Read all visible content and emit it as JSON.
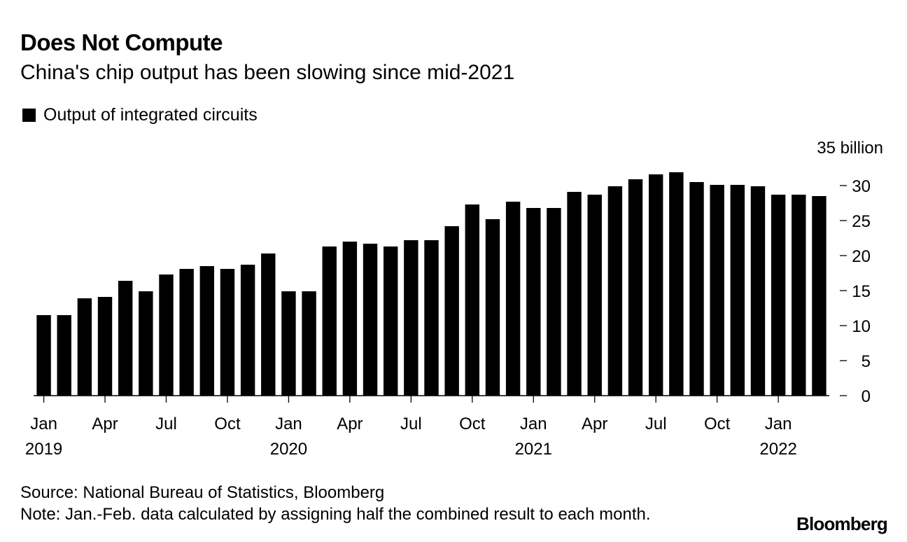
{
  "header": {
    "title": "Does Not Compute",
    "subtitle": "China's chip output has been slowing since mid-2021"
  },
  "legend": {
    "label": "Output of integrated circuits",
    "color": "#000000"
  },
  "footer": {
    "source": "Source: National Bureau of Statistics, Bloomberg",
    "note": "Note: Jan.-Feb. data calculated by assigning half the combined result to each month.",
    "logo": "Bloomberg"
  },
  "chart_data": {
    "type": "bar",
    "title": "Does Not Compute",
    "subtitle": "China's chip output has been slowing since mid-2021",
    "ylabel": "35 billion",
    "ylim": [
      0,
      35
    ],
    "yticks": [
      0,
      5,
      10,
      15,
      20,
      25,
      30
    ],
    "y_axis_position": "right",
    "bar_color": "#000000",
    "categories": [
      "2019-01",
      "2019-02",
      "2019-03",
      "2019-04",
      "2019-05",
      "2019-06",
      "2019-07",
      "2019-08",
      "2019-09",
      "2019-10",
      "2019-11",
      "2019-12",
      "2020-01",
      "2020-02",
      "2020-03",
      "2020-04",
      "2020-05",
      "2020-06",
      "2020-07",
      "2020-08",
      "2020-09",
      "2020-10",
      "2020-11",
      "2020-12",
      "2021-01",
      "2021-02",
      "2021-03",
      "2021-04",
      "2021-05",
      "2021-06",
      "2021-07",
      "2021-08",
      "2021-09",
      "2021-10",
      "2021-11",
      "2021-12",
      "2022-01",
      "2022-02",
      "2022-03"
    ],
    "values": [
      11.5,
      11.5,
      13.9,
      14.1,
      16.4,
      14.9,
      17.3,
      18.1,
      18.5,
      18.1,
      18.7,
      20.3,
      14.9,
      14.9,
      21.3,
      22.0,
      21.7,
      21.3,
      22.2,
      22.2,
      24.2,
      27.3,
      25.2,
      27.7,
      26.8,
      26.8,
      29.1,
      28.7,
      29.9,
      30.9,
      31.6,
      31.9,
      30.5,
      30.1,
      30.1,
      29.9,
      28.7,
      28.7,
      28.5
    ],
    "x_ticks": [
      {
        "index": 0,
        "label": "Jan",
        "year": "2019"
      },
      {
        "index": 3,
        "label": "Apr",
        "year": ""
      },
      {
        "index": 6,
        "label": "Jul",
        "year": ""
      },
      {
        "index": 9,
        "label": "Oct",
        "year": ""
      },
      {
        "index": 12,
        "label": "Jan",
        "year": "2020"
      },
      {
        "index": 15,
        "label": "Apr",
        "year": ""
      },
      {
        "index": 18,
        "label": "Jul",
        "year": ""
      },
      {
        "index": 21,
        "label": "Oct",
        "year": ""
      },
      {
        "index": 24,
        "label": "Jan",
        "year": "2021"
      },
      {
        "index": 27,
        "label": "Apr",
        "year": ""
      },
      {
        "index": 30,
        "label": "Jul",
        "year": ""
      },
      {
        "index": 33,
        "label": "Oct",
        "year": ""
      },
      {
        "index": 36,
        "label": "Jan",
        "year": "2022"
      }
    ]
  }
}
